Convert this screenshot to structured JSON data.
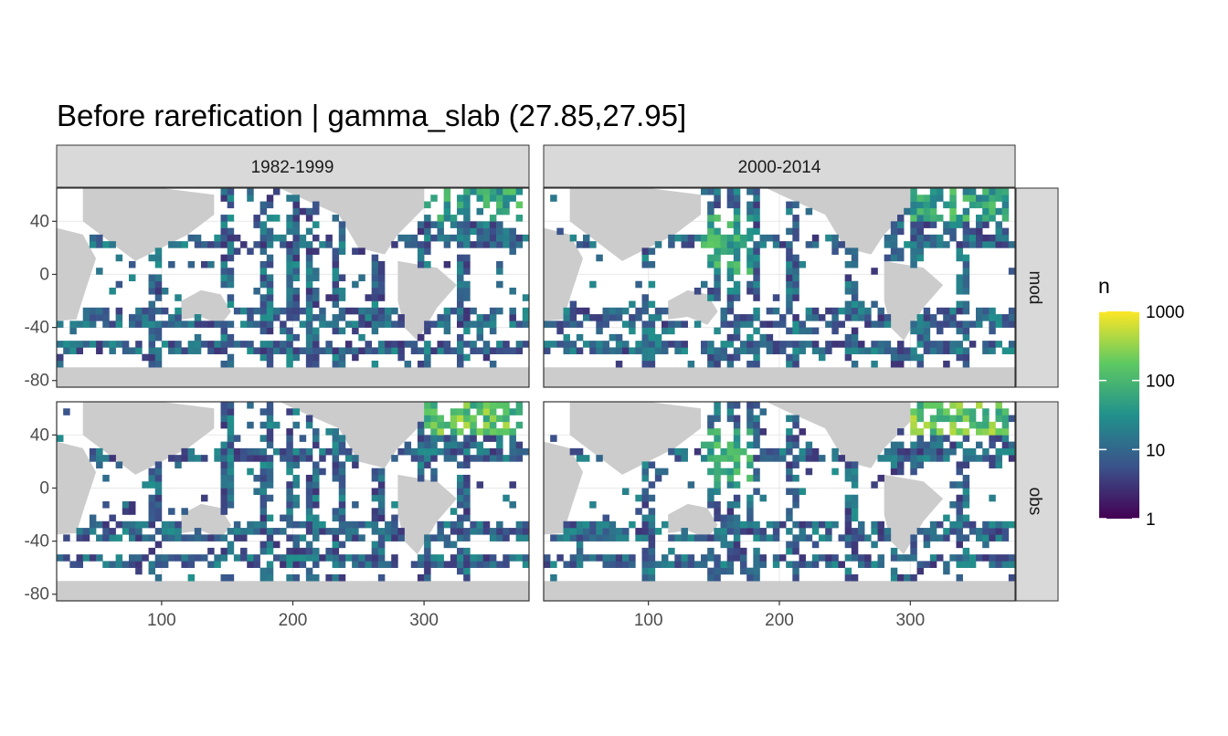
{
  "chart_data": {
    "type": "heatmap",
    "title": "Before rarefication | gamma_slab (27.85,27.95]",
    "facets": {
      "columns": [
        "1982-1999",
        "2000-2014"
      ],
      "rows": [
        "mod",
        "obs"
      ]
    },
    "x_ticks": [
      "100",
      "200",
      "300"
    ],
    "y_ticks": [
      "40",
      "0",
      "-40",
      "-80"
    ],
    "x_tick_values": [
      100,
      200,
      300
    ],
    "y_tick_values": [
      40,
      0,
      -40,
      -80
    ],
    "xlim": [
      20,
      380
    ],
    "ylim": [
      -85,
      65
    ],
    "grid": true,
    "colorbar": {
      "title": "n",
      "scale": "log10",
      "ticks": [
        "1000",
        "100",
        "10",
        "1"
      ],
      "tick_values": [
        1000,
        100,
        10,
        1
      ],
      "palette": "viridis",
      "colors": [
        "#440154",
        "#3b528b",
        "#21918c",
        "#5ec962",
        "#fde725"
      ]
    },
    "colors": {
      "land": "#cccccc",
      "strip": "#d9d9d9",
      "grid": "#ebebeb",
      "frame": "#333333"
    },
    "cell_size_deg": 5
  }
}
